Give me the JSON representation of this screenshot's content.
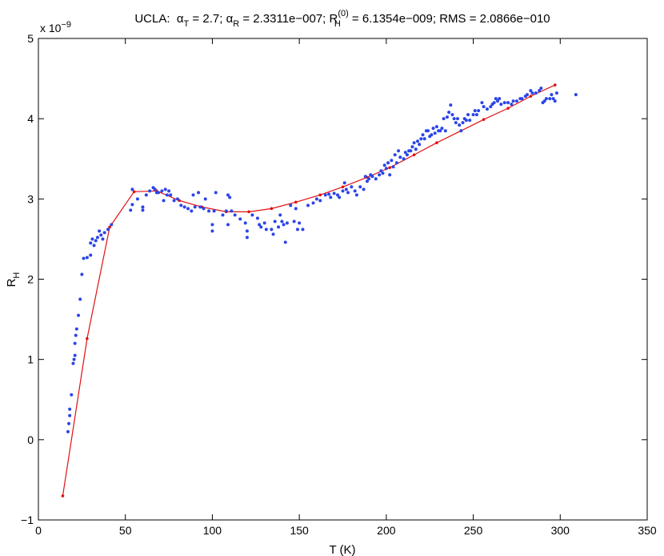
{
  "chart_data": {
    "type": "scatter",
    "title": "UCLA:  α_T = 2.7; α_R = 2.3311e−007; R_H^(0) = 6.1354e−009; RMS = 2.0866e−010",
    "title_parts": {
      "prefix": "UCLA:  ",
      "alpha": "α",
      "sub_T": "T",
      "part1": " = 2.7; ",
      "sub_R": "R",
      "part2": " = 2.3311e−007; R",
      "sup_0": "(0)",
      "sub_H": "H",
      "part3": " = 6.1354e−009; RMS = 2.0866e−010"
    },
    "xlabel": "T (K)",
    "ylabel": {
      "main": "R",
      "sub": "H"
    },
    "exponent_label": {
      "base": "x 10",
      "power": "−9"
    },
    "xlim": [
      0,
      350
    ],
    "ylim": [
      -1,
      5
    ],
    "x_ticks": [
      0,
      50,
      100,
      150,
      200,
      250,
      300,
      350
    ],
    "y_ticks": [
      -1,
      0,
      1,
      2,
      3,
      4,
      5
    ],
    "grid": false,
    "colors": {
      "points": "#2b45e8",
      "fit": "#e01010"
    },
    "series": [
      {
        "type": "scatter",
        "points": [
          [
            17,
            0.1
          ],
          [
            17.5,
            0.2
          ],
          [
            18,
            0.3
          ],
          [
            18,
            0.38
          ],
          [
            19,
            0.56
          ],
          [
            20,
            0.95
          ],
          [
            20.5,
            1.0
          ],
          [
            21,
            1.05
          ],
          [
            21,
            1.2
          ],
          [
            21.5,
            1.3
          ],
          [
            22,
            1.38
          ],
          [
            23,
            1.55
          ],
          [
            24,
            1.75
          ],
          [
            25,
            2.06
          ],
          [
            26,
            2.26
          ],
          [
            28,
            2.27
          ],
          [
            30,
            2.3
          ],
          [
            30,
            2.45
          ],
          [
            31,
            2.5
          ],
          [
            32,
            2.42
          ],
          [
            33,
            2.48
          ],
          [
            34,
            2.52
          ],
          [
            35,
            2.6
          ],
          [
            36,
            2.55
          ],
          [
            37,
            2.5
          ],
          [
            38,
            2.58
          ],
          [
            40,
            2.62
          ],
          [
            42,
            2.68
          ],
          [
            53,
            2.86
          ],
          [
            54,
            2.93
          ],
          [
            54,
            3.12
          ],
          [
            57,
            3.0
          ],
          [
            60,
            2.86
          ],
          [
            60,
            2.9
          ],
          [
            62,
            3.05
          ],
          [
            64,
            3.1
          ],
          [
            66,
            3.14
          ],
          [
            67,
            3.12
          ],
          [
            68,
            3.08
          ],
          [
            69,
            3.08
          ],
          [
            71,
            3.1
          ],
          [
            72,
            2.98
          ],
          [
            73,
            3.12
          ],
          [
            74,
            3.05
          ],
          [
            75,
            3.1
          ],
          [
            76,
            3.05
          ],
          [
            78,
            2.98
          ],
          [
            80,
            3.0
          ],
          [
            82,
            2.92
          ],
          [
            84,
            2.9
          ],
          [
            86,
            2.88
          ],
          [
            88,
            2.85
          ],
          [
            89,
            3.05
          ],
          [
            90,
            2.9
          ],
          [
            92,
            3.08
          ],
          [
            93,
            2.9
          ],
          [
            95,
            2.88
          ],
          [
            96,
            3.0
          ],
          [
            98,
            2.85
          ],
          [
            100,
            2.6
          ],
          [
            100,
            2.68
          ],
          [
            101,
            2.85
          ],
          [
            102,
            3.08
          ],
          [
            106,
            2.8
          ],
          [
            108,
            2.85
          ],
          [
            109,
            2.68
          ],
          [
            109,
            3.05
          ],
          [
            110,
            3.02
          ],
          [
            111,
            2.85
          ],
          [
            113,
            2.8
          ],
          [
            116,
            2.75
          ],
          [
            119,
            2.7
          ],
          [
            120,
            2.52
          ],
          [
            120,
            2.6
          ],
          [
            123,
            2.8
          ],
          [
            126,
            2.76
          ],
          [
            127,
            2.68
          ],
          [
            128,
            2.65
          ],
          [
            130,
            2.7
          ],
          [
            131,
            2.62
          ],
          [
            134,
            2.62
          ],
          [
            135,
            2.56
          ],
          [
            136,
            2.72
          ],
          [
            138,
            2.65
          ],
          [
            139,
            2.8
          ],
          [
            140,
            2.72
          ],
          [
            141,
            2.68
          ],
          [
            142,
            2.46
          ],
          [
            143,
            2.7
          ],
          [
            145,
            2.92
          ],
          [
            147,
            2.72
          ],
          [
            148,
            2.88
          ],
          [
            149,
            2.62
          ],
          [
            150,
            2.7
          ],
          [
            152,
            2.62
          ],
          [
            155,
            2.92
          ],
          [
            158,
            2.95
          ],
          [
            160,
            3.0
          ],
          [
            162,
            2.98
          ],
          [
            165,
            3.05
          ],
          [
            167,
            3.06
          ],
          [
            168,
            3.02
          ],
          [
            170,
            3.07
          ],
          [
            172,
            3.05
          ],
          [
            173,
            3.02
          ],
          [
            175,
            3.1
          ],
          [
            176,
            3.2
          ],
          [
            177,
            3.12
          ],
          [
            178,
            3.08
          ],
          [
            180,
            3.15
          ],
          [
            182,
            3.1
          ],
          [
            183,
            3.05
          ],
          [
            185,
            3.15
          ],
          [
            187,
            3.12
          ],
          [
            188,
            3.28
          ],
          [
            189,
            3.22
          ],
          [
            190,
            3.25
          ],
          [
            191,
            3.3
          ],
          [
            192,
            3.28
          ],
          [
            194,
            3.25
          ],
          [
            196,
            3.3
          ],
          [
            197,
            3.35
          ],
          [
            198,
            3.32
          ],
          [
            199,
            3.42
          ],
          [
            200,
            3.38
          ],
          [
            201,
            3.45
          ],
          [
            202,
            3.3
          ],
          [
            203,
            3.48
          ],
          [
            204,
            3.4
          ],
          [
            205,
            3.55
          ],
          [
            206,
            3.45
          ],
          [
            207,
            3.6
          ],
          [
            208,
            3.52
          ],
          [
            210,
            3.5
          ],
          [
            211,
            3.58
          ],
          [
            212,
            3.55
          ],
          [
            213,
            3.6
          ],
          [
            214,
            3.6
          ],
          [
            215,
            3.65
          ],
          [
            216,
            3.7
          ],
          [
            217,
            3.62
          ],
          [
            218,
            3.72
          ],
          [
            219,
            3.68
          ],
          [
            220,
            3.75
          ],
          [
            221,
            3.8
          ],
          [
            222,
            3.75
          ],
          [
            223,
            3.85
          ],
          [
            224,
            3.85
          ],
          [
            225,
            3.78
          ],
          [
            226,
            3.8
          ],
          [
            227,
            3.88
          ],
          [
            228,
            3.82
          ],
          [
            229,
            3.9
          ],
          [
            230,
            3.85
          ],
          [
            231,
            3.85
          ],
          [
            232,
            3.88
          ],
          [
            233,
            4.0
          ],
          [
            234,
            3.85
          ],
          [
            235,
            4.02
          ],
          [
            236,
            4.08
          ],
          [
            237,
            4.17
          ],
          [
            238,
            4.05
          ],
          [
            239,
            4.0
          ],
          [
            240,
            3.95
          ],
          [
            241,
            4.0
          ],
          [
            242,
            3.92
          ],
          [
            243,
            3.85
          ],
          [
            244,
            3.95
          ],
          [
            245,
            4.0
          ],
          [
            246,
            3.98
          ],
          [
            247,
            4.05
          ],
          [
            248,
            3.98
          ],
          [
            250,
            4.05
          ],
          [
            251,
            4.1
          ],
          [
            252,
            4.05
          ],
          [
            253,
            4.1
          ],
          [
            255,
            4.2
          ],
          [
            256,
            4.15
          ],
          [
            258,
            4.12
          ],
          [
            260,
            4.15
          ],
          [
            261,
            4.18
          ],
          [
            262,
            4.2
          ],
          [
            263,
            4.25
          ],
          [
            264,
            4.22
          ],
          [
            265,
            4.25
          ],
          [
            266,
            4.18
          ],
          [
            268,
            4.2
          ],
          [
            270,
            4.2
          ],
          [
            272,
            4.18
          ],
          [
            273,
            4.22
          ],
          [
            275,
            4.22
          ],
          [
            277,
            4.25
          ],
          [
            278,
            4.25
          ],
          [
            280,
            4.28
          ],
          [
            281,
            4.3
          ],
          [
            283,
            4.35
          ],
          [
            284,
            4.32
          ],
          [
            286,
            4.32
          ],
          [
            288,
            4.35
          ],
          [
            289,
            4.38
          ],
          [
            290,
            4.2
          ],
          [
            291,
            4.22
          ],
          [
            292,
            4.25
          ],
          [
            294,
            4.25
          ],
          [
            295,
            4.3
          ],
          [
            296,
            4.25
          ],
          [
            297,
            4.22
          ],
          [
            298,
            4.32
          ],
          [
            309,
            4.3
          ]
        ]
      },
      {
        "type": "line",
        "points": [
          [
            14,
            -0.7
          ],
          [
            28,
            1.26
          ],
          [
            41,
            2.65
          ],
          [
            55,
            3.09
          ],
          [
            68,
            3.1
          ],
          [
            81,
            2.98
          ],
          [
            94,
            2.9
          ],
          [
            108,
            2.84
          ],
          [
            121,
            2.84
          ],
          [
            134,
            2.88
          ],
          [
            148,
            2.96
          ],
          [
            162,
            3.05
          ],
          [
            175,
            3.15
          ],
          [
            189,
            3.27
          ],
          [
            202,
            3.39
          ],
          [
            216,
            3.55
          ],
          [
            229,
            3.7
          ],
          [
            243,
            3.85
          ],
          [
            256,
            3.99
          ],
          [
            270,
            4.13
          ],
          [
            283,
            4.28
          ],
          [
            297,
            4.42
          ]
        ]
      }
    ]
  }
}
